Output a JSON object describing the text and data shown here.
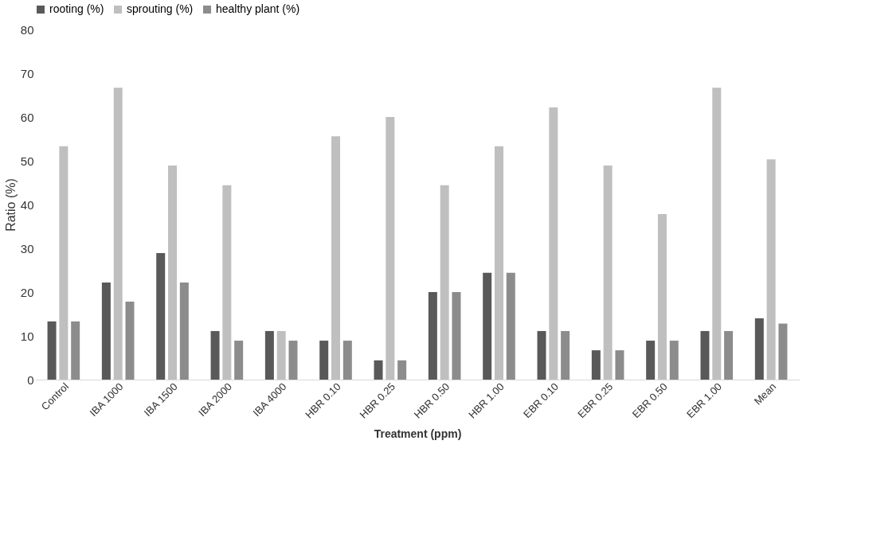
{
  "chart_data": {
    "type": "bar",
    "xlabel": "Treatment (ppm)",
    "ylabel": "Ratio (%)",
    "categories": [
      "Control",
      "IBA 1000",
      "IBA 1500",
      "IBA 2000",
      "IBA 4000",
      "HBR 0.10",
      "HBR 0.25",
      "HBR 0.50",
      "HBR 1.00",
      "EBR 0.10",
      "EBR 0.25",
      "EBR 0.50",
      "EBR 1.00",
      "Mean"
    ],
    "series": [
      {
        "name": "rooting (%)",
        "color": "#595959",
        "values": [
          13.3,
          22.2,
          28.9,
          11.1,
          11.1,
          8.9,
          4.4,
          20.0,
          24.4,
          11.1,
          6.7,
          8.9,
          11.1,
          14.0
        ]
      },
      {
        "name": "sprouting (%)",
        "color": "#bfbfbf",
        "values": [
          53.3,
          66.7,
          48.9,
          44.4,
          11.1,
          55.6,
          60.0,
          44.4,
          53.3,
          62.2,
          48.9,
          37.8,
          66.7,
          50.3
        ]
      },
      {
        "name": "healthy plant (%)",
        "color": "#8c8c8c",
        "values": [
          13.3,
          17.8,
          22.2,
          8.9,
          8.9,
          8.9,
          4.4,
          20.0,
          24.4,
          11.1,
          6.7,
          8.9,
          11.1,
          12.8
        ]
      }
    ],
    "ylim": [
      0,
      80
    ],
    "yticks": [
      0,
      10,
      20,
      30,
      40,
      50,
      60,
      70,
      80
    ],
    "grid": false,
    "legend": "top left"
  }
}
